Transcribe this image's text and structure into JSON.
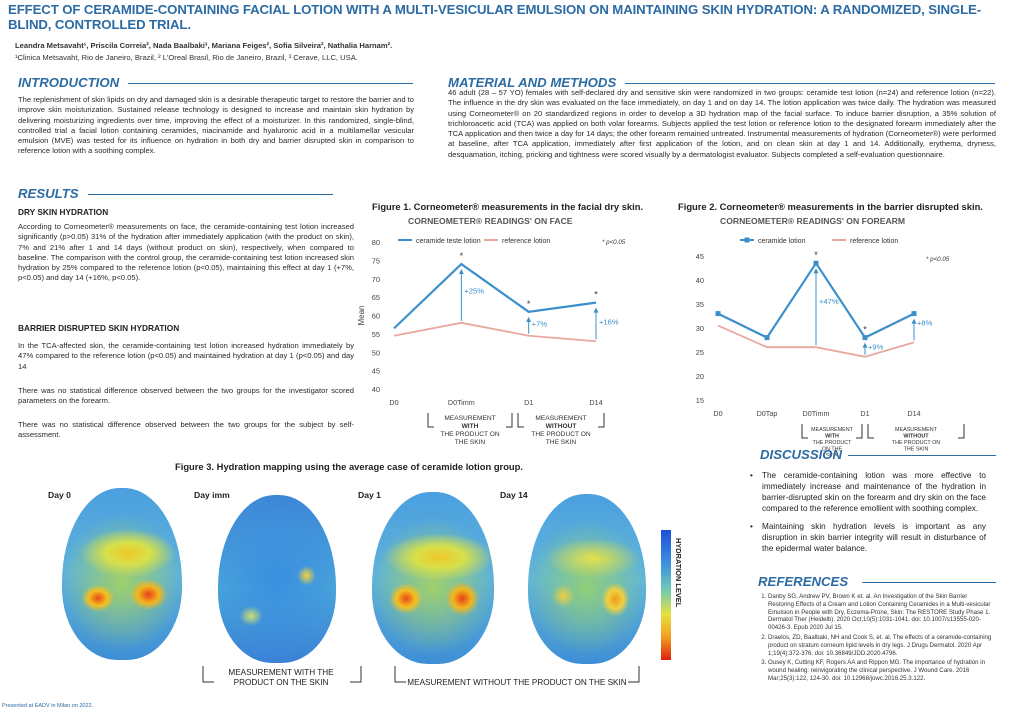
{
  "header": {
    "title": "EFFECT OF CERAMIDE-CONTAINING FACIAL LOTION WITH A MULTI-VESICULAR EMULSION ON MAINTAINING SKIN HYDRATION: A RANDOMIZED, SINGLE-BLIND, CONTROLLED TRIAL.",
    "authors": "Leandra Metsavaht¹, Priscila Correia², Nada Baalbaki³, Mariana Feiges², Sofia Silveira², Nathalia Harnam².",
    "affiliations": "¹Clinica Metsavaht, Rio de Janeiro, Brazil, ² L'Oreal Brasil, Rio de Janeiro, Brazil, ³ Cerave, LLC, USA."
  },
  "introduction": {
    "heading": "INTRODUCTION",
    "text": "The replenishment of skin lipids on dry and damaged skin is a desirable therapeutic target to restore the barrier and to improve skin moisturization. Sustained release technology is designed to increase and maintain skin hydration by delivering moisturizing ingredients over time, improving the effect of a moisturizer. In this randomized, single-blind, controlled trial a facial lotion containing ceramides, niacinamide and hyaluronic acid in a multilamellar vesicular emulsion (MVE) was tested for its influence on hydration in both dry and barrier disrupted skin in comparison to reference lotion with a soothing complex."
  },
  "methods": {
    "heading": "MATERIAL AND METHODS",
    "text": "46 adult (28 – 57 YO) females with self-declared dry and sensitive skin were randomized in two groups: ceramide test lotion (n=24) and reference lotion (n=22). The influence in the dry skin was evaluated on the face immediately, on day 1 and on day 14. The lotion application was twice daily. The hydration was measured using Corneometer® on 20 standardized regions in order to develop a 3D hydration map of the facial surface. To induce barrier disruption, a 35% solution of trichloroacetic acid (TCA) was applied on both volar forearms. Subjects applied the test lotion or reference lotion to the designated forearm immediately after the TCA application and then twice a day for 14 days; the other forearm remained untreated. Instrumental measurements of hydration (Corneometer®) were performed at baseline, after TCA application, immediately after first application of the lotion, and on clean skin at day 1 and 14. Additionally, erythema, dryness, desquamation, itching, pricking and tightness were scored visually by a dermatologist evaluator. Subjects completed a self-evaluation questionnaire."
  },
  "results": {
    "heading": "RESULTS",
    "dry_heading": "DRY SKIN HYDRATION",
    "dry_text": "According to Corneometer® measurements on face, the ceramide-containing test lotion increased significantly (p>0.05) 31% of the hydration after immediately application (with the product on skin), 7% and 21% after 1 and 14 days (without product on skin), respectively, when compared to baseline. The comparison with the control group, the ceramide-containing test lotion increased skin hydration by 25% compared to the reference lotion (p<0.05), maintaining this effect at day 1 (+7%, p<0.05) and day 14 (+16%, p<0.05).",
    "barrier_heading": "BARRIER DISRUPTED SKIN HYDRATION",
    "barrier_text": "In the TCA-affected skin, the ceramide-containing test lotion increased hydration immediately by 47% compared to the reference lotion (p<0.05) and maintained hydration at day 1 (p<0.05) and day 14",
    "note1": "There was no statistical difference observed between the two groups for the investigator scored parameters on the forearm.",
    "note2": "There was no statistical difference observed between the two groups for the subject by self-assessment."
  },
  "chart_data": [
    {
      "type": "line",
      "figure_title": "Figure 1. Corneometer® measurements in the facial dry skin.",
      "title": "CORNEOMETER® READINGS' ON FACE",
      "ylabel": "Mean",
      "ylim": [
        40,
        80
      ],
      "yticks": [
        40,
        45,
        50,
        55,
        60,
        65,
        70,
        75,
        80
      ],
      "x": [
        "D0",
        "D0Timm",
        "D1",
        "D14"
      ],
      "series": [
        {
          "name": "ceramide teste lotion",
          "color": "#3b8fcb",
          "values": [
            56.5,
            74,
            61,
            63.5
          ]
        },
        {
          "name": "reference lotion",
          "color": "#e8a8a0",
          "values": [
            54.5,
            58,
            54.5,
            53
          ]
        }
      ],
      "significance": "* p<0.05",
      "stars": [
        1,
        2,
        3
      ],
      "annotations": [
        {
          "text": "+25%",
          "index": 1,
          "y": 66
        },
        {
          "text": "+7%",
          "index": 2,
          "y": 57
        },
        {
          "text": "+16%",
          "index": 3,
          "y": 57.5
        }
      ],
      "brackets": [
        "MEASUREMENT WITH THE PRODUCT ON THE SKIN",
        "MEASUREMENT WITHOUT THE PRODUCT ON THE SKIN"
      ]
    },
    {
      "type": "line",
      "figure_title": "Figure 2. Corneometer® measurements in the barrier disrupted skin.",
      "title": "CORNEOMETER® READINGS' ON FOREARM",
      "ylim": [
        15,
        45
      ],
      "yticks": [
        15,
        20,
        25,
        30,
        35,
        40,
        45
      ],
      "x": [
        "D0",
        "D0Tap",
        "D0Timm",
        "D1",
        "D14"
      ],
      "series": [
        {
          "name": "ceramide lotion",
          "color": "#3b8fcb",
          "values": [
            33,
            28,
            43.5,
            28,
            33
          ]
        },
        {
          "name": "reference lotion",
          "color": "#e8a8a0",
          "values": [
            30.5,
            26,
            26,
            24,
            27
          ]
        }
      ],
      "significance": "* p<0.05",
      "stars": [
        2,
        3
      ],
      "annotations": [
        {
          "text": "+47%",
          "index": 2,
          "y": 35
        },
        {
          "text": "+9%",
          "index": 3,
          "y": 25.5
        },
        {
          "text": "+8%",
          "index": 4,
          "y": 30.5
        }
      ],
      "brackets": [
        "MEASUREMENT WITH THE PRODUCT ON THE SKIN",
        "MEASUREMENT WITHOUT THE PRODUCT ON THE SKIN"
      ]
    }
  ],
  "figure3": {
    "title": "Figure 3. Hydration mapping using the average case of ceramide lotion group.",
    "days": [
      "Day 0",
      "Day imm",
      "Day 1",
      "Day 14"
    ],
    "scale_label": "HYDRATION LEVEL",
    "bracket_with": "MEASUREMENT WITH THE PRODUCT ON THE SKIN",
    "bracket_without": "MEASUREMENT WITHOUT THE PRODUCT ON THE SKIN"
  },
  "discussion": {
    "heading": "DISCUSSION",
    "items": [
      "The ceramide-containing lotion was more effective to immediately increase and maintenance of the hydration in barrier-disrupted skin on the forearm and dry skin on the face compared to the reference emollient with soothing complex.",
      "Maintaining skin hydration levels is important as any disruption in skin barrier integrity will result in disturbance of the epidermal water balance."
    ]
  },
  "references": {
    "heading": "REFERENCES",
    "items": [
      "Danby SG, Andrew PV, Brown K et. al. An Investigation of the Skin Barrier Restoring Effects of a Cream and Lotion Containing Ceramides in a Multi-vesicular Emulsion in People with Dry, Eczema-Prone, Skin: The RESTORE Study Phase 1. Dermatol Ther (Heidelb). 2020 Oct;10(5):1031-1041. doi: 10.1007/s13555-020-00426-3. Epub 2020 Jul 15.",
      "Draelos, ZD, Baalbaki, NH and Cook S, et. al. The effects of a ceramide-containing product on stratum corneum lipid levels in dry legs. J Drugs Dermatol. 2020 Apr 1;19(4):372-376. doi: 10.36849/JDD.2020.4796.",
      "Ousey K, Cutting KF, Rogers AA and Rippon MG. The importance of hydration in wound healing: reinvigorating the clinical perspective. J Wound Care. 2016 Mar;25(3):122, 124-30. doi: 10.12968/jowc.2016.25.3.122."
    ]
  },
  "footer": "Presented at EADV in Milan on 2022."
}
